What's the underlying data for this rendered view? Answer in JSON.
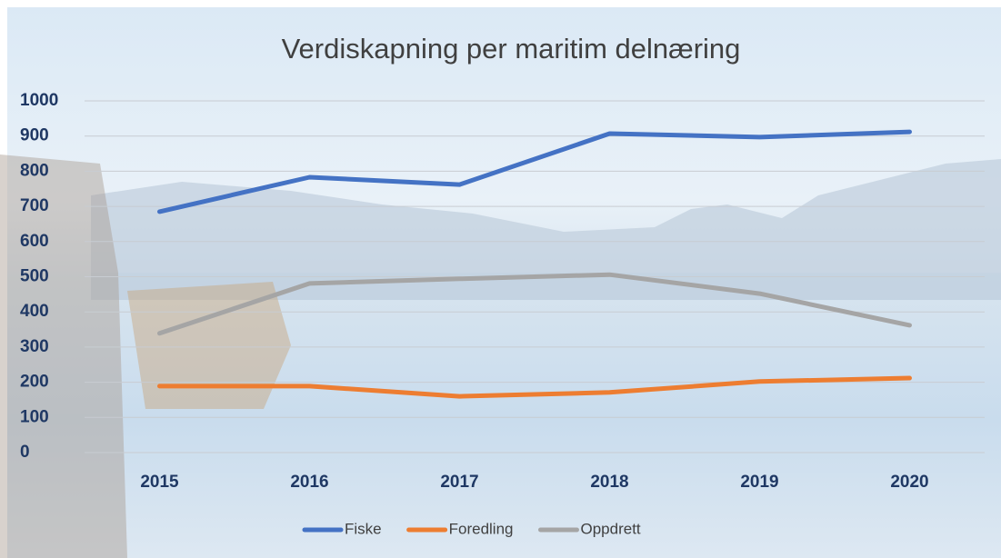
{
  "chart_data": {
    "type": "line",
    "title": "Verdiskapning per maritim delnæring",
    "categories": [
      "2015",
      "2016",
      "2017",
      "2018",
      "2019",
      "2020"
    ],
    "series": [
      {
        "name": "Fiske",
        "color": "#4472c4",
        "values": [
          685,
          783,
          762,
          907,
          897,
          912
        ]
      },
      {
        "name": "Foredling",
        "color": "#ed7d31",
        "values": [
          189,
          189,
          160,
          171,
          202,
          212
        ]
      },
      {
        "name": "Oppdrett",
        "color": "#a5a5a5",
        "values": [
          339,
          481,
          494,
          506,
          452,
          362
        ]
      }
    ],
    "ylim": [
      0,
      1000
    ],
    "yticks": [
      0,
      100,
      200,
      300,
      400,
      500,
      600,
      700,
      800,
      900,
      1000
    ],
    "grid": true,
    "legend": "bottom"
  }
}
